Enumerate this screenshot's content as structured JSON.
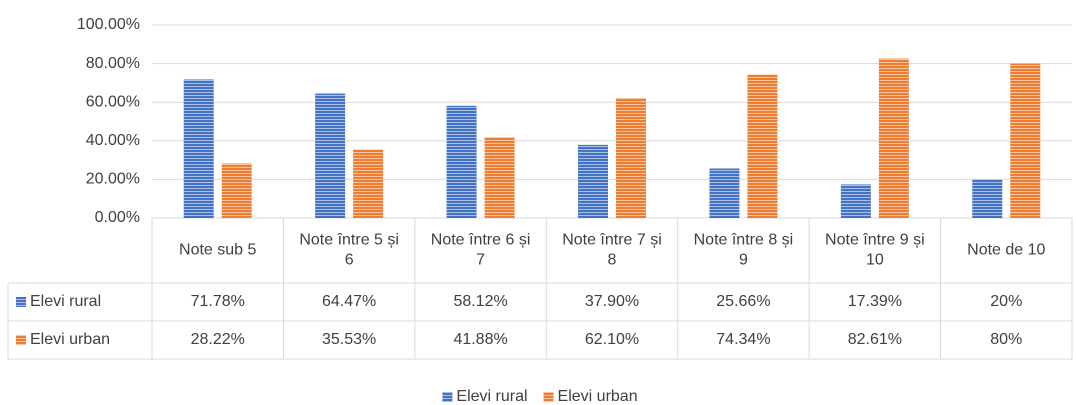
{
  "chart_data": {
    "type": "bar",
    "categories": [
      "Note sub 5",
      "Note între 5 și 6",
      "Note între 6 și 7",
      "Note între 7 și 8",
      "Note între 8 și 9",
      "Note între 9 și 10",
      "Note de 10"
    ],
    "series": [
      {
        "name": "Elevi rural",
        "color": "#4472c4",
        "values": [
          71.78,
          64.47,
          58.12,
          37.9,
          25.66,
          17.39,
          20
        ],
        "value_labels": [
          "71.78%",
          "64.47%",
          "58.12%",
          "37.90%",
          "25.66%",
          "17.39%",
          "20%"
        ]
      },
      {
        "name": "Elevi urban",
        "color": "#ed7d31",
        "values": [
          28.22,
          35.53,
          41.88,
          62.1,
          74.34,
          82.61,
          80
        ],
        "value_labels": [
          "28.22%",
          "35.53%",
          "41.88%",
          "62.10%",
          "74.34%",
          "82.61%",
          "80%"
        ]
      }
    ],
    "ylim": [
      0,
      100
    ],
    "yticks": [
      {
        "value": 0,
        "label": "0.00%"
      },
      {
        "value": 20,
        "label": "20.00%"
      },
      {
        "value": 40,
        "label": "40.00%"
      },
      {
        "value": 60,
        "label": "60.00%"
      },
      {
        "value": 80,
        "label": "80.00%"
      },
      {
        "value": 100,
        "label": "100.00%"
      }
    ],
    "grid": true,
    "data_table": true,
    "legend": "bottom"
  }
}
